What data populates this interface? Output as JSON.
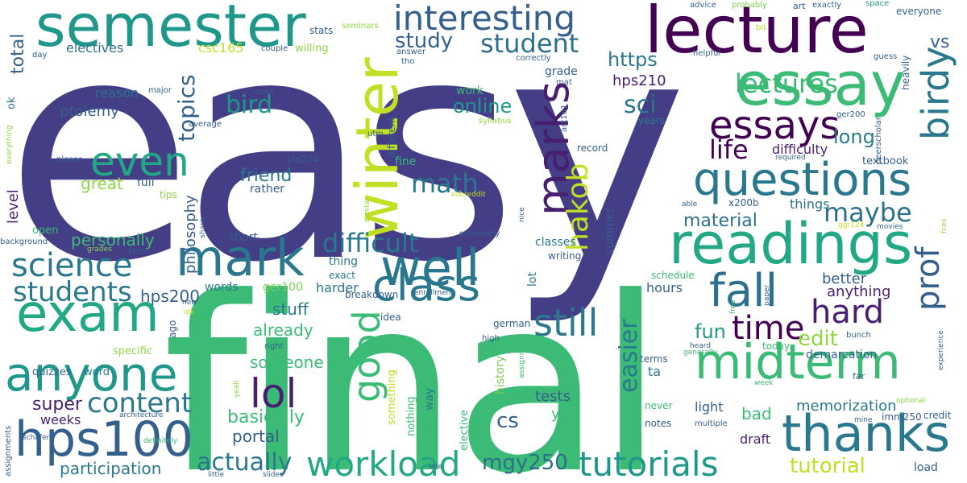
{
  "palette": [
    "#433E85",
    "#3BBB75",
    "#2A788E",
    "#1F988B",
    "#440154",
    "#C2DF23",
    "#35608D",
    "#22A884",
    "#7AD151",
    "#481F70",
    "#8FD744",
    "#2D708E",
    "#51C56A"
  ],
  "words": [
    {
      "text": "easy",
      "color": "#433E85",
      "weight": 100
    },
    {
      "text": "final",
      "color": "#3BBB75",
      "weight": 80
    },
    {
      "text": "lecture",
      "color": "#440154",
      "weight": 40
    },
    {
      "text": "semester",
      "color": "#1F988B",
      "weight": 38
    },
    {
      "text": "winter",
      "color": "#C2DF23",
      "weight": 38
    },
    {
      "text": "readings",
      "color": "#22A884",
      "weight": 34
    },
    {
      "text": "essay",
      "color": "#3BBB75",
      "weight": 34
    },
    {
      "text": "exam",
      "color": "#22A884",
      "weight": 30
    },
    {
      "text": "mark",
      "color": "#2A788E",
      "weight": 30
    },
    {
      "text": "well",
      "color": "#2A788E",
      "weight": 30
    },
    {
      "text": "questions",
      "color": "#2A788E",
      "weight": 28
    },
    {
      "text": "midterm",
      "color": "#3BBB75",
      "weight": 28
    },
    {
      "text": "thanks",
      "color": "#2A788E",
      "weight": 28
    },
    {
      "text": "hps100",
      "color": "#35608D",
      "weight": 28
    },
    {
      "text": "anyone",
      "color": "#1F988B",
      "weight": 26
    },
    {
      "text": "fall",
      "color": "#2D708E",
      "weight": 24
    },
    {
      "text": "class",
      "color": "#2A788E",
      "weight": 24
    },
    {
      "text": "marks",
      "color": "#481F70",
      "weight": 24
    },
    {
      "text": "interesting",
      "color": "#35608D",
      "weight": 22
    },
    {
      "text": "workload",
      "color": "#22A884",
      "weight": 22
    },
    {
      "text": "tutorials",
      "color": "#1F988B",
      "weight": 22
    },
    {
      "text": "lol",
      "color": "#481F70",
      "weight": 22
    },
    {
      "text": "still",
      "color": "#2A788E",
      "weight": 22
    },
    {
      "text": "even",
      "color": "#22A884",
      "weight": 22
    },
    {
      "text": "good",
      "color": "#3BBB75",
      "weight": 22
    },
    {
      "text": "essays",
      "color": "#440154",
      "weight": 20
    },
    {
      "text": "birdy",
      "color": "#2A788E",
      "weight": 20
    },
    {
      "text": "science",
      "color": "#2A788E",
      "weight": 20
    },
    {
      "text": "time",
      "color": "#440154",
      "weight": 20
    },
    {
      "text": "hard",
      "color": "#481F70",
      "weight": 20
    },
    {
      "text": "prof",
      "color": "#35608D",
      "weight": 20
    },
    {
      "text": "hakob",
      "color": "#C2DF23",
      "weight": 18
    },
    {
      "text": "students",
      "color": "#2A788E",
      "weight": 18
    },
    {
      "text": "content",
      "color": "#2A788E",
      "weight": 18
    },
    {
      "text": "student",
      "color": "#2D708E",
      "weight": 16
    },
    {
      "text": "lectures",
      "color": "#3BBB75",
      "weight": 16
    },
    {
      "text": "math",
      "color": "#2A788E",
      "weight": 16
    },
    {
      "text": "difficult",
      "color": "#2A788E",
      "weight": 16
    },
    {
      "text": "life",
      "color": "#440154",
      "weight": 16
    },
    {
      "text": "maybe",
      "color": "#2D708E",
      "weight": 16
    },
    {
      "text": "bird",
      "color": "#1F988B",
      "weight": 16
    },
    {
      "text": "sci",
      "color": "#2A788E",
      "weight": 16
    },
    {
      "text": "easier",
      "color": "#2A788E",
      "weight": 16
    },
    {
      "text": "actually",
      "color": "#2A788E",
      "weight": 16
    },
    {
      "text": "mgy250",
      "color": "#2D708E",
      "weight": 14
    },
    {
      "text": "topics",
      "color": "#35608D",
      "weight": 14
    },
    {
      "text": "study",
      "color": "#35608D",
      "weight": 14
    },
    {
      "text": "online",
      "color": "#1F988B",
      "weight": 14
    },
    {
      "text": "long",
      "color": "#2A788E",
      "weight": 14
    },
    {
      "text": "fun",
      "color": "#1F988B",
      "weight": 14
    },
    {
      "text": "cs",
      "color": "#35608D",
      "weight": 14
    },
    {
      "text": "edit",
      "color": "#8FD744",
      "weight": 14
    },
    {
      "text": "https",
      "color": "#2A788E",
      "weight": 14
    },
    {
      "text": "tutorial",
      "color": "#C2DF23",
      "weight": 14
    },
    {
      "text": "total",
      "color": "#35608D",
      "weight": 14
    },
    {
      "text": "vs",
      "color": "#35608D",
      "weight": 14
    },
    {
      "text": "friend",
      "color": "#2A788E",
      "weight": 12
    },
    {
      "text": "material",
      "color": "#2D708E",
      "weight": 12
    },
    {
      "text": "super",
      "color": "#481F70",
      "weight": 12
    },
    {
      "text": "basically",
      "color": "#3BBB75",
      "weight": 12
    },
    {
      "text": "portal",
      "color": "#35608D",
      "weight": 12
    },
    {
      "text": "participation",
      "color": "#2A788E",
      "weight": 12
    },
    {
      "text": "stuff",
      "color": "#2A788E",
      "weight": 12
    },
    {
      "text": "already",
      "color": "#3BBB75",
      "weight": 12
    },
    {
      "text": "someone",
      "color": "#3BBB75",
      "weight": 12
    },
    {
      "text": "great",
      "color": "#8FD744",
      "weight": 12
    },
    {
      "text": "personally",
      "color": "#3BBB75",
      "weight": 12
    },
    {
      "text": "hps200",
      "color": "#35608D",
      "weight": 12
    },
    {
      "text": "ptolemy",
      "color": "#35608D",
      "weight": 12
    },
    {
      "text": "philosophy",
      "color": "#35608D",
      "weight": 12
    },
    {
      "text": "level",
      "color": "#481F70",
      "weight": 12
    },
    {
      "text": "memorization",
      "color": "#2A788E",
      "weight": 12
    },
    {
      "text": "tests",
      "color": "#35608D",
      "weight": 12
    },
    {
      "text": "bad",
      "color": "#3BBB75",
      "weight": 12
    },
    {
      "text": "yet",
      "color": "#3BBB75",
      "weight": 12
    },
    {
      "text": "better",
      "color": "#35608D",
      "weight": 12
    },
    {
      "text": "anything",
      "color": "#481F70",
      "weight": 12
    },
    {
      "text": "hps210",
      "color": "#481F70",
      "weight": 12
    },
    {
      "text": "difficulty",
      "color": "#481F70",
      "weight": 10
    },
    {
      "text": "things",
      "color": "#2D708E",
      "weight": 10
    },
    {
      "text": "weeks",
      "color": "#481F70",
      "weight": 10
    },
    {
      "text": "electives",
      "color": "#2D708E",
      "weight": 10
    },
    {
      "text": "csc165",
      "color": "#C2DF23",
      "weight": 10
    },
    {
      "text": "reason",
      "color": "#2D708E",
      "weight": 10
    },
    {
      "text": "ta",
      "color": "#2A788E",
      "weight": 10
    },
    {
      "text": "light",
      "color": "#35608D",
      "weight": 10
    },
    {
      "text": "draft",
      "color": "#481F70",
      "weight": 10
    },
    {
      "text": "hours",
      "color": "#35608D",
      "weight": 10
    },
    {
      "text": "classes",
      "color": "#2A788E",
      "weight": 10
    },
    {
      "text": "summer",
      "color": "#35608D",
      "weight": 10
    },
    {
      "text": "harder",
      "color": "#2A788E",
      "weight": 10
    },
    {
      "text": "ger100",
      "color": "#7AD151",
      "weight": 10
    },
    {
      "text": "words",
      "color": "#2A788E",
      "weight": 10
    },
    {
      "text": "short",
      "color": "#35608D",
      "weight": 10
    },
    {
      "text": "thing",
      "color": "#2A788E",
      "weight": 10
    },
    {
      "text": "rather",
      "color": "#35608D",
      "weight": 10
    },
    {
      "text": "full",
      "color": "#35608D",
      "weight": 10
    },
    {
      "text": "fine",
      "color": "#3BBB75",
      "weight": 10
    },
    {
      "text": "lot",
      "color": "#2A788E",
      "weight": 10
    },
    {
      "text": "way",
      "color": "#2A788E",
      "weight": 10
    },
    {
      "text": "grade",
      "color": "#35608D",
      "weight": 10
    },
    {
      "text": "work",
      "color": "#3BBB75",
      "weight": 10
    },
    {
      "text": "demarcation",
      "color": "#35608D",
      "weight": 10
    },
    {
      "text": "load",
      "color": "#35608D",
      "weight": 10
    },
    {
      "text": "history",
      "color": "#7AD151",
      "weight": 10
    },
    {
      "text": "elective",
      "color": "#3BBB75",
      "weight": 9
    },
    {
      "text": "nothing",
      "color": "#3BBB75",
      "weight": 9
    },
    {
      "text": "something",
      "color": "#C2DF23",
      "weight": 9
    },
    {
      "text": "word",
      "color": "#2A788E",
      "weight": 9
    },
    {
      "text": "specific",
      "color": "#8FD744",
      "weight": 9
    },
    {
      "text": "quizzes",
      "color": "#35608D",
      "weight": 9
    },
    {
      "text": "ok",
      "color": "#2A788E",
      "weight": 9
    },
    {
      "text": "open",
      "color": "#3BBB75",
      "weight": 9
    },
    {
      "text": "tips",
      "color": "#8FD744",
      "weight": 9
    },
    {
      "text": "ago",
      "color": "#35608D",
      "weight": 9
    },
    {
      "text": "willing",
      "color": "#8FD744",
      "weight": 9
    },
    {
      "text": "stats",
      "color": "#35608D",
      "weight": 8
    },
    {
      "text": "different",
      "color": "#35608D",
      "weight": 8
    },
    {
      "text": "cla204",
      "color": "#35608D",
      "weight": 8
    },
    {
      "text": "years",
      "color": "#2A788E",
      "weight": 8
    },
    {
      "text": "record",
      "color": "#35608D",
      "weight": 8
    },
    {
      "text": "writing",
      "color": "#35608D",
      "weight": 8
    },
    {
      "text": "german",
      "color": "#35608D",
      "weight": 8
    },
    {
      "text": "idea",
      "color": "#35608D",
      "weight": 8
    },
    {
      "text": "breakdown",
      "color": "#35608D",
      "weight": 8
    },
    {
      "text": "exact",
      "color": "#2A788E",
      "weight": 8
    },
    {
      "text": "schedule",
      "color": "#3BBB75",
      "weight": 8
    },
    {
      "text": "terms",
      "color": "#35608D",
      "weight": 8
    },
    {
      "text": "notes",
      "color": "#35608D",
      "weight": 8
    },
    {
      "text": "never",
      "color": "#3BBB75",
      "weight": 8
    },
    {
      "text": "x200b",
      "color": "#35608D",
      "weight": 8
    },
    {
      "text": "textbook",
      "color": "#35608D",
      "weight": 8
    },
    {
      "text": "imm250",
      "color": "#35608D",
      "weight": 8
    },
    {
      "text": "credit",
      "color": "#35608D",
      "weight": 8
    },
    {
      "text": "today",
      "color": "#3BBB75",
      "weight": 8
    },
    {
      "text": "heavily",
      "color": "#35608D",
      "weight": 8
    },
    {
      "text": "everyone",
      "color": "#35608D",
      "weight": 8
    },
    {
      "text": "exactly",
      "color": "#35608D",
      "weight": 7
    },
    {
      "text": "art",
      "color": "#35608D",
      "weight": 7
    },
    {
      "text": "advice",
      "color": "#35608D",
      "weight": 7
    },
    {
      "text": "probably",
      "color": "#7AD151",
      "weight": 7
    },
    {
      "text": "seminars",
      "color": "#8FD744",
      "weight": 7
    },
    {
      "text": "space",
      "color": "#1F988B",
      "weight": 7
    },
    {
      "text": "couple",
      "color": "#35608D",
      "weight": 7
    },
    {
      "text": "answer",
      "color": "#35608D",
      "weight": 7
    },
    {
      "text": "tho",
      "color": "#35608D",
      "weight": 7
    },
    {
      "text": "correctly",
      "color": "#35608D",
      "weight": 7
    },
    {
      "text": "mat",
      "color": "#35608D",
      "weight": 7
    },
    {
      "text": "helpful",
      "color": "#35608D",
      "weight": 7
    },
    {
      "text": "guess",
      "color": "#35608D",
      "weight": 7
    },
    {
      "text": "bit",
      "color": "#C2DF23",
      "weight": 7
    },
    {
      "text": "day",
      "color": "#35608D",
      "weight": 7
    },
    {
      "text": "major",
      "color": "#35608D",
      "weight": 7
    },
    {
      "text": "ones",
      "color": "#35608D",
      "weight": 7
    },
    {
      "text": "average",
      "color": "#35608D",
      "weight": 7
    },
    {
      "text": "everything",
      "color": "#8FD744",
      "weight": 6
    },
    {
      "text": "please",
      "color": "#35608D",
      "weight": 7
    },
    {
      "text": "utm",
      "color": "#35608D",
      "weight": 7
    },
    {
      "text": "syllabus",
      "color": "#8FD744",
      "weight": 7
    },
    {
      "text": "ast101",
      "color": "#35608D",
      "weight": 7
    },
    {
      "text": "ger200",
      "color": "#35608D",
      "weight": 7
    },
    {
      "text": "peerscholar",
      "color": "#35608D",
      "weight": 7
    },
    {
      "text": "required",
      "color": "#35608D",
      "weight": 6
    },
    {
      "text": "subreddit",
      "color": "#C2DF23",
      "weight": 6
    },
    {
      "text": "similar",
      "color": "#8FD744",
      "weight": 6
    },
    {
      "text": "nice",
      "color": "#35608D",
      "weight": 6
    },
    {
      "text": "share",
      "color": "#35608D",
      "weight": 6
    },
    {
      "text": "able",
      "color": "#35608D",
      "weight": 6
    },
    {
      "text": "ggr124",
      "color": "#C2DF23",
      "weight": 6
    },
    {
      "text": "movies",
      "color": "#35608D",
      "weight": 6
    },
    {
      "text": "fces",
      "color": "#8FD744",
      "weight": 6
    },
    {
      "text": "background",
      "color": "#35608D",
      "weight": 7
    },
    {
      "text": "grades",
      "color": "#8FD744",
      "weight": 6
    },
    {
      "text": "term",
      "color": "#35608D",
      "weight": 7
    },
    {
      "text": "extremely",
      "color": "#35608D",
      "weight": 7
    },
    {
      "text": "new",
      "color": "#35608D",
      "weight": 6
    },
    {
      "text": "idk",
      "color": "#C2DF23",
      "weight": 6
    },
    {
      "text": "enrollment",
      "color": "#35608D",
      "weight": 6
    },
    {
      "text": "right",
      "color": "#35608D",
      "weight": 7
    },
    {
      "text": "high",
      "color": "#35608D",
      "weight": 7
    },
    {
      "text": "assignment",
      "color": "#3BBB75",
      "weight": 6
    },
    {
      "text": "heard",
      "color": "#35608D",
      "weight": 6
    },
    {
      "text": "generally",
      "color": "#3BBB75",
      "weight": 6
    },
    {
      "text": "paper",
      "color": "#35608D",
      "weight": 6
    },
    {
      "text": "free",
      "color": "#3BBB75",
      "weight": 6
    },
    {
      "text": "bunch",
      "color": "#35608D",
      "weight": 7
    },
    {
      "text": "experience",
      "color": "#35608D",
      "weight": 6
    },
    {
      "text": "far",
      "color": "#35608D",
      "weight": 7
    },
    {
      "text": "optional",
      "color": "#8FD744",
      "weight": 6
    },
    {
      "text": "mine",
      "color": "#35608D",
      "weight": 6
    },
    {
      "text": "week",
      "color": "#3BBB75",
      "weight": 6
    },
    {
      "text": "multiple",
      "color": "#35608D",
      "weight": 7
    },
    {
      "text": "late",
      "color": "#35608D",
      "weight": 6
    },
    {
      "text": "slides",
      "color": "#35608D",
      "weight": 6
    },
    {
      "text": "little",
      "color": "#35608D",
      "weight": 6
    },
    {
      "text": "definitely",
      "color": "#3BBB75",
      "weight": 6
    },
    {
      "text": "architecture",
      "color": "#35608D",
      "weight": 6
    },
    {
      "text": "yeah",
      "color": "#8FD744",
      "weight": 6
    },
    {
      "text": "assignments",
      "color": "#35608D",
      "weight": 6
    },
    {
      "text": "schäfer",
      "color": "#35608D",
      "weight": 6
    }
  ]
}
